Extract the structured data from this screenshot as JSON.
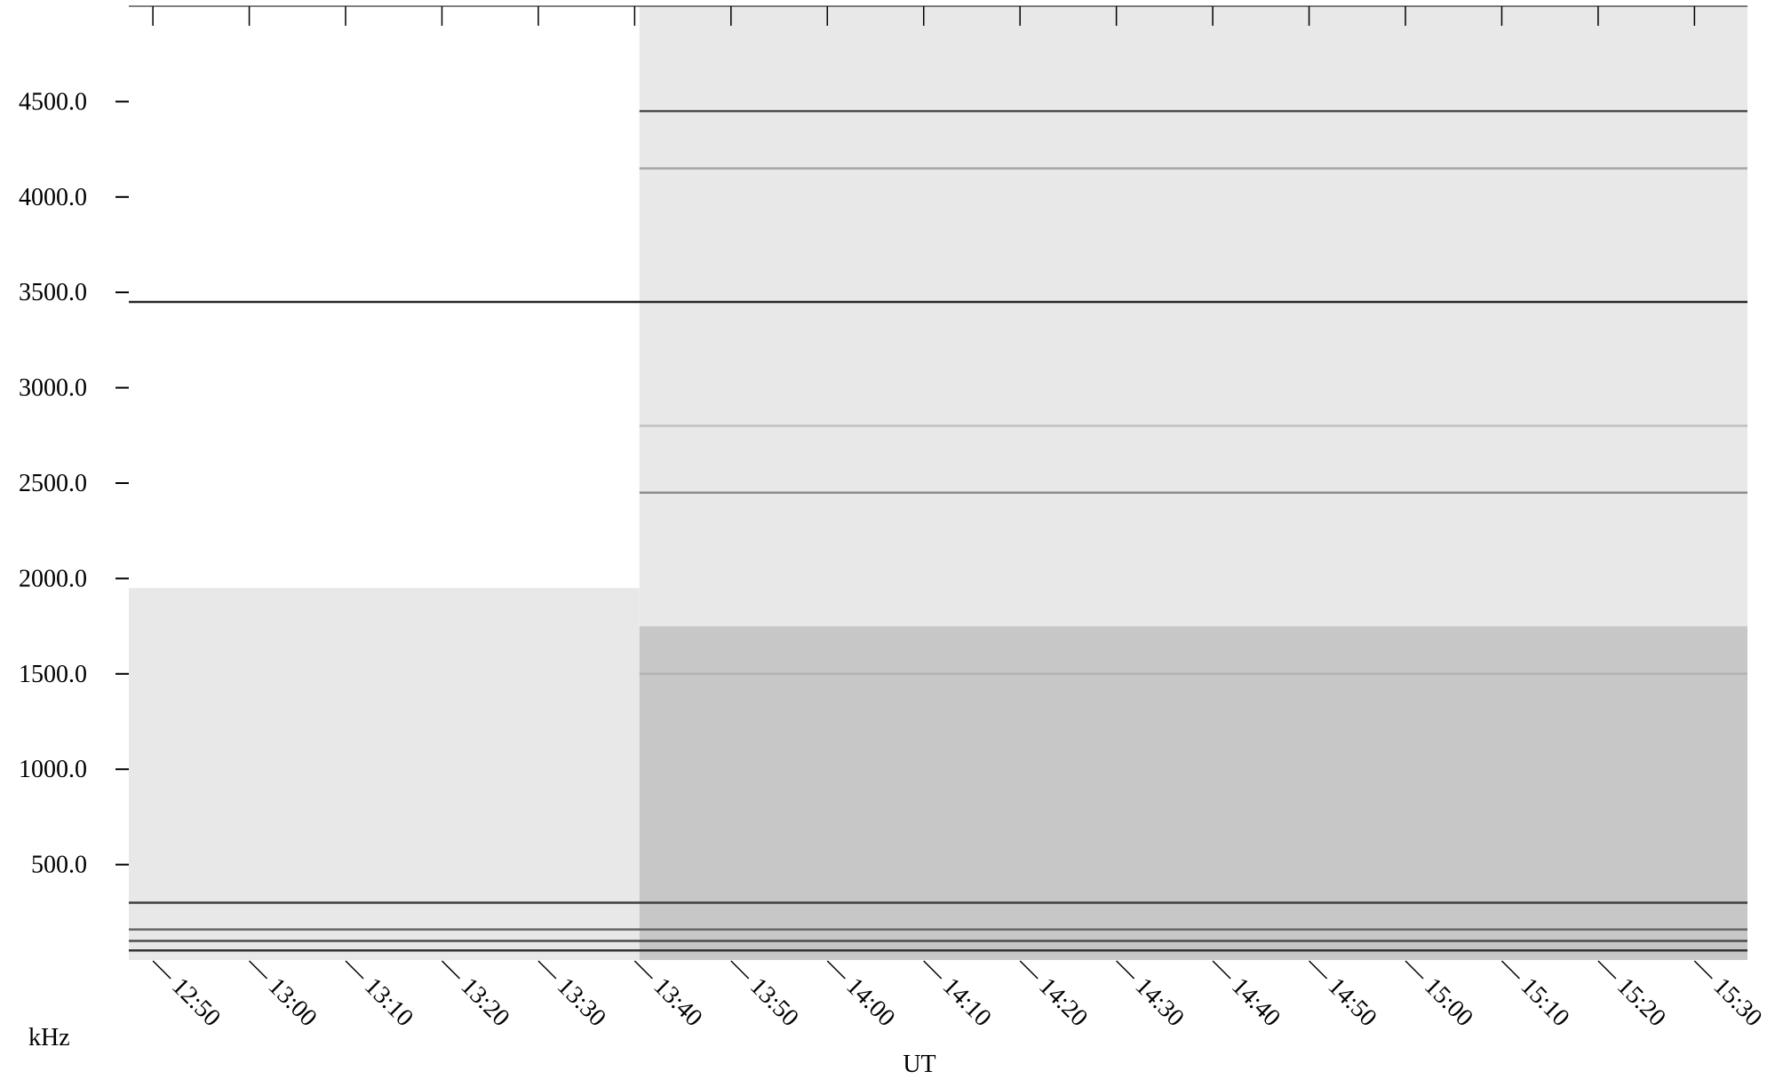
{
  "chart_data": {
    "type": "heatmap",
    "title": "",
    "xlabel": "UT",
    "ylabel": "kHz",
    "x_tick_labels": [
      "12:50",
      "13:00",
      "13:10",
      "13:20",
      "13:30",
      "13:40",
      "13:50",
      "14:00",
      "14:10",
      "14:20",
      "14:30",
      "14:40",
      "14:50",
      "15:00",
      "15:10",
      "15:20",
      "15:30"
    ],
    "x_tick_minutes": [
      770,
      780,
      790,
      800,
      810,
      820,
      830,
      840,
      850,
      860,
      870,
      880,
      890,
      900,
      910,
      920,
      930
    ],
    "xlim_minutes": [
      767.5,
      935.5
    ],
    "y_tick_labels": [
      "500.0",
      "1000.0",
      "1500.0",
      "2000.0",
      "2500.0",
      "3000.0",
      "3500.0",
      "4000.0",
      "4500.0"
    ],
    "y_ticks_khz": [
      500,
      1000,
      1500,
      2000,
      2500,
      3000,
      3500,
      4000,
      4500
    ],
    "ylim_khz": [
      0,
      5000
    ],
    "regime_change_minute": 820.5,
    "noise_regions": [
      {
        "t_start": 767.5,
        "t_end": 820.5,
        "f_low": 0,
        "f_high": 1950,
        "level": 0.09
      },
      {
        "t_start": 820.5,
        "t_end": 935.5,
        "f_low": 0,
        "f_high": 1750,
        "level": 0.22
      },
      {
        "t_start": 820.5,
        "t_end": 935.5,
        "f_low": 1750,
        "f_high": 5000,
        "level": 0.09
      }
    ],
    "spectral_lines_khz": [
      {
        "freq": 3450,
        "t_start": 767.5,
        "t_end": 935.5,
        "intensity": 0.85
      },
      {
        "freq": 4450,
        "t_start": 820.5,
        "t_end": 935.5,
        "intensity": 0.7
      },
      {
        "freq": 300,
        "t_start": 767.5,
        "t_end": 935.5,
        "intensity": 0.75
      },
      {
        "freq": 2450,
        "t_start": 820.5,
        "t_end": 935.5,
        "intensity": 0.45
      },
      {
        "freq": 4150,
        "t_start": 820.5,
        "t_end": 935.5,
        "intensity": 0.35
      },
      {
        "freq": 1500,
        "t_start": 820.5,
        "t_end": 935.5,
        "intensity": 0.3
      },
      {
        "freq": 2800,
        "t_start": 820.5,
        "t_end": 935.5,
        "intensity": 0.25
      },
      {
        "freq": 160,
        "t_start": 767.5,
        "t_end": 935.5,
        "intensity": 0.6
      },
      {
        "freq": 100,
        "t_start": 767.5,
        "t_end": 935.5,
        "intensity": 0.7
      },
      {
        "freq": 50,
        "t_start": 767.5,
        "t_end": 935.5,
        "intensity": 0.8
      }
    ],
    "grid": false,
    "legend": "none",
    "colormap": {
      "low": "#ffffff",
      "high": "#000000"
    }
  }
}
